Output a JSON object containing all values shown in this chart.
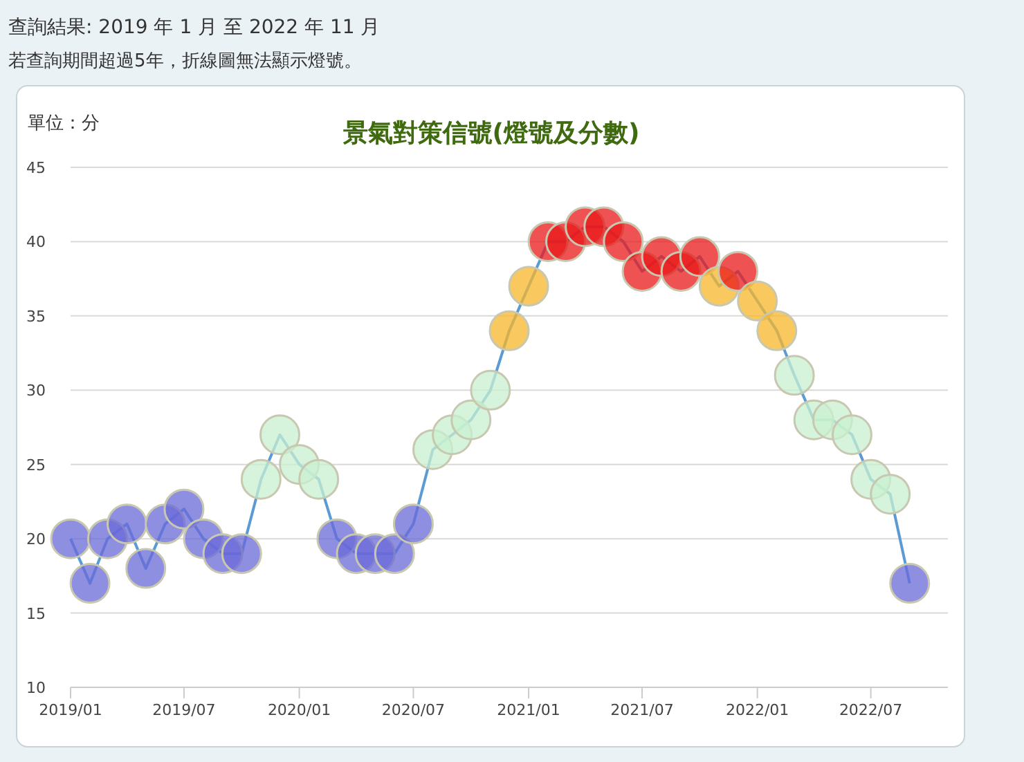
{
  "chart_data": {
    "type": "line",
    "title": "景氣對策信號(燈號及分數)",
    "ylabel": "單位：分",
    "annotations": [
      "查詢結果: 2019 年 1 月 至 2022 年 11 月",
      "若查詢期間超過5年，折線圖無法顯示燈號。"
    ],
    "x": [
      "2019-01",
      "2019-02",
      "2019-03",
      "2019-04",
      "2019-05",
      "2019-06",
      "2019-07",
      "2019-08",
      "2019-09",
      "2019-10",
      "2019-11",
      "2019-12",
      "2020-01",
      "2020-02",
      "2020-03",
      "2020-04",
      "2020-05",
      "2020-06",
      "2020-07",
      "2020-08",
      "2020-09",
      "2020-10",
      "2020-11",
      "2020-12",
      "2021-01",
      "2021-02",
      "2021-03",
      "2021-04",
      "2021-05",
      "2021-06",
      "2021-07",
      "2021-08",
      "2021-09",
      "2021-10",
      "2021-11",
      "2021-12",
      "2022-01",
      "2022-02",
      "2022-03",
      "2022-04",
      "2022-05",
      "2022-06",
      "2022-07",
      "2022-08",
      "2022-09"
    ],
    "series": [
      {
        "color": "#5b9bd5",
        "values": [
          20,
          17,
          20,
          21,
          18,
          21,
          22,
          20,
          19,
          19,
          24,
          27,
          25,
          24,
          20,
          19,
          19,
          19,
          21,
          26,
          27,
          28,
          30,
          34,
          37,
          40,
          40,
          41,
          41,
          40,
          38,
          39,
          38,
          39,
          37,
          38,
          36,
          34,
          31,
          28,
          28,
          27,
          24,
          23,
          17
        ],
        "colors": [
          "#6a6ad8",
          "#6a6ad8",
          "#6a6ad8",
          "#6a6ad8",
          "#6a6ad8",
          "#6a6ad8",
          "#6a6ad8",
          "#6a6ad8",
          "#6a6ad8",
          "#6a6ad8",
          "#c8f0d0",
          "#c8f0d0",
          "#c8f0d0",
          "#c8f0d0",
          "#6a6ad8",
          "#6a6ad8",
          "#6a6ad8",
          "#6a6ad8",
          "#6a6ad8",
          "#c8f0d0",
          "#c8f0d0",
          "#c8f0d0",
          "#c8f0d0",
          "#f7b52a",
          "#f7b52a",
          "#e81818",
          "#e81818",
          "#e81818",
          "#e81818",
          "#e81818",
          "#e81818",
          "#e81818",
          "#e81818",
          "#e81818",
          "#f7b52a",
          "#e81818",
          "#f7b52a",
          "#f7b52a",
          "#c8f0d0",
          "#c8f0d0",
          "#c8f0d0",
          "#c8f0d0",
          "#c8f0d0",
          "#c8f0d0",
          "#6a6ad8"
        ]
      }
    ],
    "xlim": [
      "2019-01",
      "2022-11"
    ],
    "xticks": [
      {
        "value": "2019-01",
        "label": "2019/01"
      },
      {
        "value": "2019-07",
        "label": "2019/07"
      },
      {
        "value": "2020-01",
        "label": "2020/01"
      },
      {
        "value": "2020-07",
        "label": "2020/07"
      },
      {
        "value": "2021-01",
        "label": "2021/01"
      },
      {
        "value": "2021-07",
        "label": "2021/07"
      },
      {
        "value": "2022-01",
        "label": "2022/01"
      },
      {
        "value": "2022-07",
        "label": "2022/07"
      }
    ],
    "ylim": [
      10,
      45
    ],
    "yticks": [
      10,
      15,
      20,
      25,
      30,
      35,
      40,
      45
    ],
    "grid": "y",
    "marker": "circle",
    "line_style": "solid"
  }
}
